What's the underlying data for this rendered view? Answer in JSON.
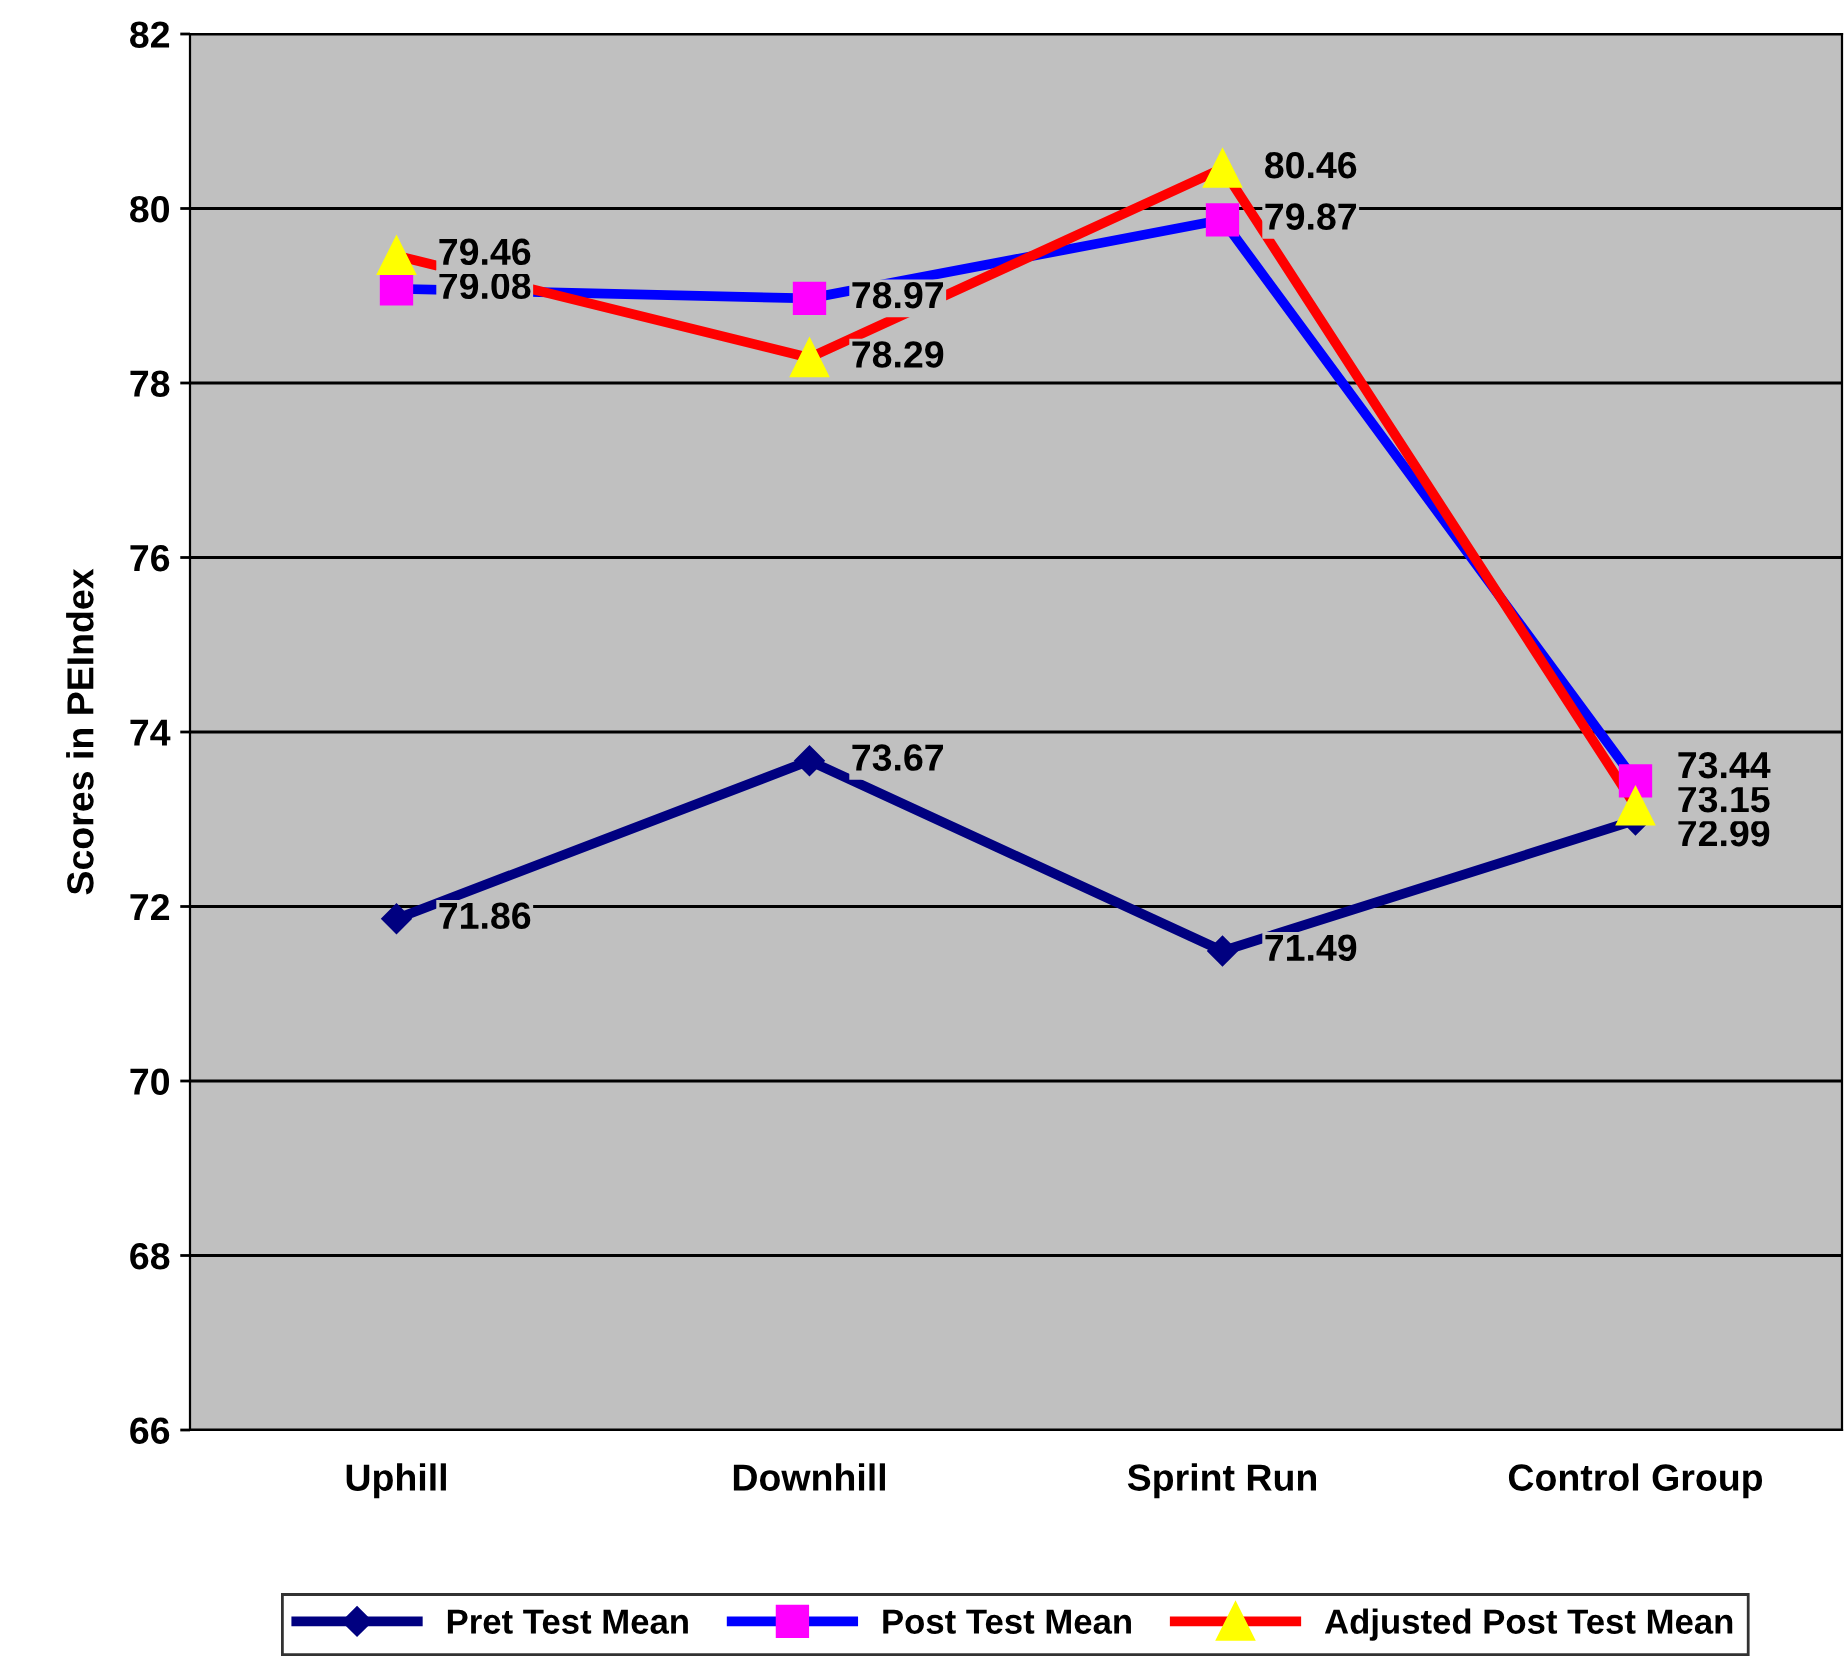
{
  "chart_data": {
    "type": "line",
    "ylabel": "Scores in PEIndex",
    "categories": [
      "Uphill",
      "Downhill",
      "Sprint Run",
      "Control Group"
    ],
    "series": [
      {
        "name": "Pret Test Mean",
        "color": "#000080",
        "marker": "diamond",
        "colors": [
          "#000080",
          "#000080",
          "#000080",
          "#000080"
        ],
        "values": [
          71.86,
          73.67,
          71.49,
          72.99
        ]
      },
      {
        "name": "Post Test Mean",
        "color": "#0000ff",
        "marker": "square",
        "colors": [
          "#ff00ff",
          "#ff00ff",
          "#ff00ff",
          "#ff00ff"
        ],
        "values": [
          79.08,
          78.97,
          79.87,
          73.44
        ]
      },
      {
        "name": "Adjusted Post Test Mean",
        "color": "#ff0000",
        "marker": "triangle",
        "colors": [
          "#ffff00",
          "#ffff00",
          "#ffff00",
          "#ffff00"
        ],
        "values": [
          79.46,
          78.29,
          80.46,
          73.15
        ]
      }
    ],
    "ylim": [
      66,
      82
    ],
    "yticks": [
      66,
      68,
      70,
      72,
      74,
      76,
      78,
      80,
      82
    ],
    "grid": "y",
    "legend": "bottom",
    "data_labels": true
  }
}
